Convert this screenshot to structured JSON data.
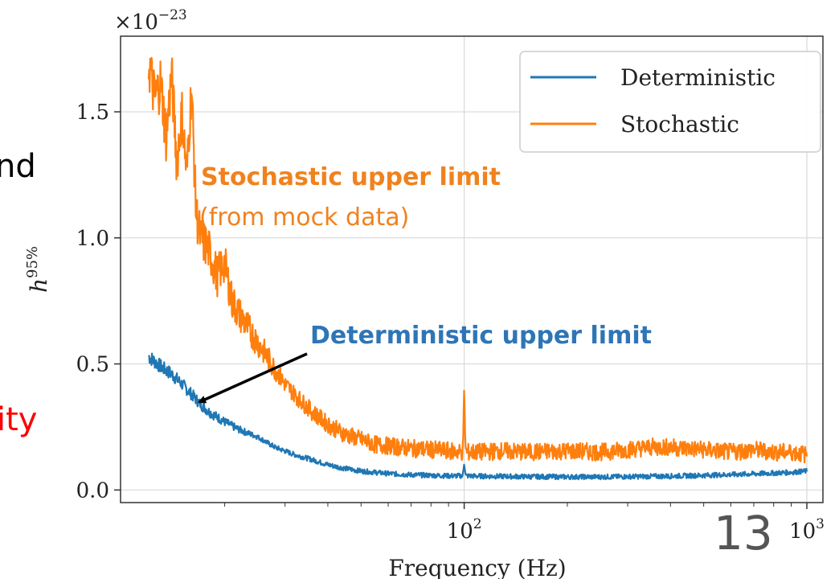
{
  "slide": {
    "left_fragment_top": "nd",
    "left_fragment_bottom": "ity",
    "page_number": "13"
  },
  "colors": {
    "deterministic": "#1f77b4",
    "stochastic": "#ff7f0e",
    "red_text": "#ff0000",
    "arrow": "#000000"
  },
  "annotations": {
    "stochastic_title": "Stochastic upper limit",
    "stochastic_subtitle": "(from mock data)",
    "deterministic_title": "Deterministic upper limit"
  },
  "chart_data": {
    "type": "line",
    "title": "",
    "xlabel": "Frequency (Hz)",
    "ylabel": "h^95%",
    "x_scale": "log",
    "xlim": [
      10,
      1000
    ],
    "ylim": [
      -0.05,
      1.8
    ],
    "y_multiplier": "×10^−23",
    "grid": true,
    "legend_position": "top-right",
    "x_ticks": [
      {
        "value": 100,
        "label": "10",
        "exp": "2"
      },
      {
        "value": 1000,
        "label": "10",
        "exp": "3"
      }
    ],
    "y_ticks": [
      {
        "value": 0.0,
        "label": "0.0"
      },
      {
        "value": 0.5,
        "label": "0.5"
      },
      {
        "value": 1.0,
        "label": "1.0"
      },
      {
        "value": 1.5,
        "label": "1.5"
      }
    ],
    "series": [
      {
        "name": "Deterministic",
        "color": "#1f77b4",
        "x": [
          12,
          13,
          14,
          15,
          16,
          17,
          18,
          20,
          22,
          25,
          28,
          32,
          36,
          40,
          45,
          50,
          60,
          70,
          80,
          90,
          99,
          100,
          101,
          110,
          130,
          150,
          200,
          250,
          300,
          400,
          500,
          600,
          700,
          800,
          900,
          1000
        ],
        "y": [
          0.53,
          0.49,
          0.46,
          0.42,
          0.38,
          0.34,
          0.31,
          0.27,
          0.24,
          0.21,
          0.17,
          0.14,
          0.12,
          0.1,
          0.085,
          0.075,
          0.065,
          0.06,
          0.058,
          0.056,
          0.056,
          0.11,
          0.056,
          0.055,
          0.054,
          0.053,
          0.052,
          0.052,
          0.053,
          0.055,
          0.058,
          0.061,
          0.064,
          0.067,
          0.07,
          0.075
        ]
      },
      {
        "name": "Stochastic",
        "color": "#ff7f0e",
        "x": [
          12,
          12.5,
          13,
          13.5,
          14,
          14.5,
          15,
          15.5,
          16,
          16.5,
          17,
          18,
          19,
          20,
          21,
          22,
          24,
          26,
          28,
          30,
          33,
          36,
          40,
          45,
          50,
          55,
          60,
          70,
          80,
          90,
          99,
          100,
          101,
          110,
          130,
          150,
          200,
          250,
          300,
          350,
          400,
          500,
          600,
          700,
          800,
          900,
          1000
        ],
        "y": [
          1.7,
          1.55,
          1.62,
          1.4,
          1.65,
          1.3,
          1.5,
          1.25,
          1.6,
          1.1,
          1.0,
          0.95,
          0.85,
          0.9,
          0.75,
          0.7,
          0.62,
          0.55,
          0.48,
          0.42,
          0.36,
          0.31,
          0.26,
          0.22,
          0.2,
          0.18,
          0.175,
          0.165,
          0.16,
          0.155,
          0.15,
          0.38,
          0.15,
          0.15,
          0.155,
          0.15,
          0.155,
          0.15,
          0.16,
          0.17,
          0.17,
          0.16,
          0.15,
          0.16,
          0.15,
          0.15,
          0.14
        ]
      }
    ]
  }
}
